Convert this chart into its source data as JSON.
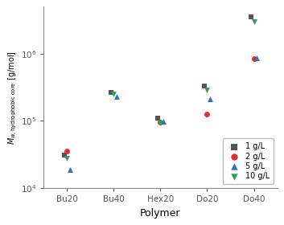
{
  "polymers": [
    "Bu20",
    "Bu40",
    "Hex20",
    "Do20",
    "Do40"
  ],
  "series_order": [
    "1 g/L",
    "2 g/L",
    "5 g/L",
    "10 g/L"
  ],
  "series": {
    "1 g/L": {
      "color": "#555555",
      "marker": "s",
      "values": [
        31000.0,
        265000.0,
        110000.0,
        330000.0,
        3500000.0
      ]
    },
    "2 g/L": {
      "color": "#e03030",
      "marker": "o",
      "values": [
        36000.0,
        null,
        95000.0,
        125000.0,
        850000.0
      ]
    },
    "5 g/L": {
      "color": "#3070c0",
      "marker": "^",
      "values": [
        19000.0,
        230000.0,
        98000.0,
        210000.0,
        870000.0
      ]
    },
    "10 g/L": {
      "color": "#30a050",
      "marker": "v",
      "values": [
        28000.0,
        250000.0,
        93000.0,
        290000.0,
        3000000.0
      ]
    }
  },
  "xlabel": "Polymer",
  "ylim": [
    10000.0,
    5000000.0
  ],
  "yticks": [
    10000.0,
    100000.0,
    1000000.0
  ],
  "background_color": "#ffffff",
  "marker_size": 5,
  "offsets": {
    "1 g/L": -0.06,
    "2 g/L": 0.0,
    "5 g/L": 0.06,
    "10 g/L": 0.0
  }
}
